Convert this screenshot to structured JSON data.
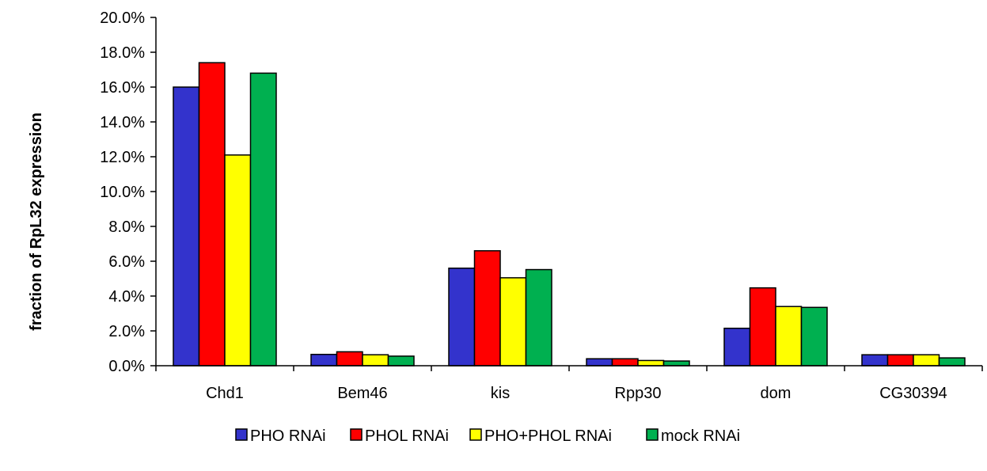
{
  "chart_data": {
    "type": "bar",
    "title": "",
    "xlabel": "",
    "ylabel": "fraction of RpL32 expression",
    "categories": [
      "Chd1",
      "Bem46",
      "kis",
      "Rpp30",
      "dom",
      "CG30394"
    ],
    "ylim": [
      0,
      0.2
    ],
    "yticks": [
      0,
      0.02,
      0.04,
      0.06,
      0.08,
      0.1,
      0.12,
      0.14,
      0.16,
      0.18,
      0.2
    ],
    "ytick_labels": [
      "0.0%",
      "2.0%",
      "4.0%",
      "6.0%",
      "8.0%",
      "10.0%",
      "12.0%",
      "14.0%",
      "16.0%",
      "18.0%",
      "20.0%"
    ],
    "grid": false,
    "legend_position": "bottom",
    "series": [
      {
        "name": "PHO RNAi",
        "color": "#3333cc",
        "values": [
          0.16,
          0.0065,
          0.056,
          0.004,
          0.0215,
          0.0063
        ]
      },
      {
        "name": "PHOL RNAi",
        "color": "#ff0000",
        "values": [
          0.174,
          0.008,
          0.066,
          0.004,
          0.0447,
          0.0063
        ]
      },
      {
        "name": "PHO+PHOL RNAi",
        "color": "#ffff00",
        "values": [
          0.121,
          0.0063,
          0.0505,
          0.003,
          0.034,
          0.0063
        ]
      },
      {
        "name": "mock RNAi",
        "color": "#00b050",
        "values": [
          0.168,
          0.0055,
          0.0552,
          0.0027,
          0.0335,
          0.0045
        ]
      }
    ]
  }
}
